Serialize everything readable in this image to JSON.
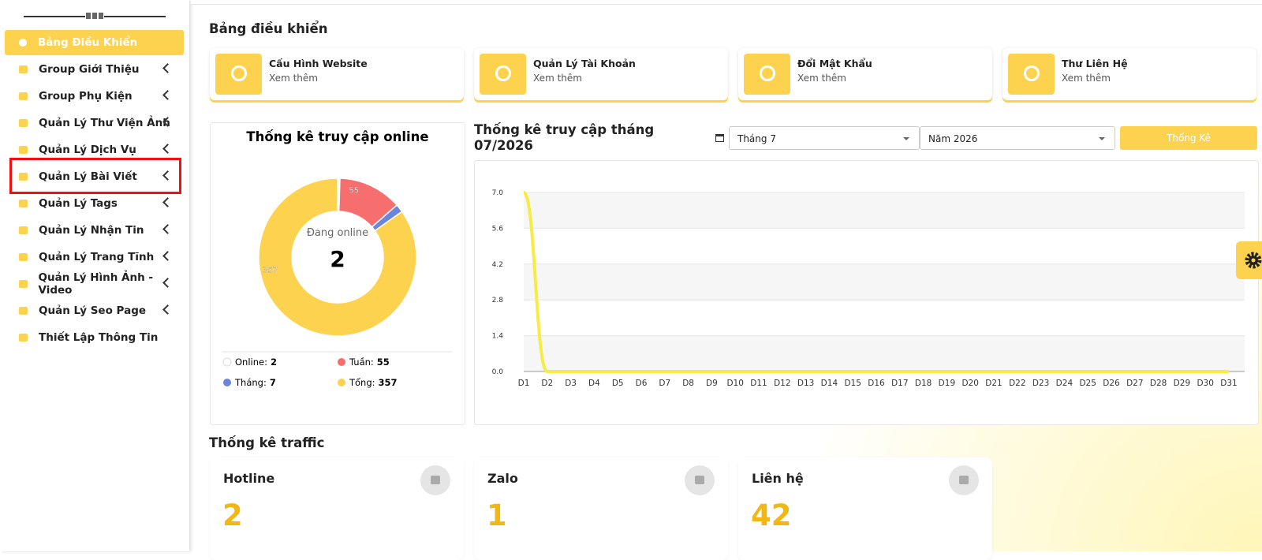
{
  "sidebar": {
    "menu": [
      {
        "label": "Bảng Điều Khiển"
      },
      {
        "label": "Group Giới Thiệu"
      },
      {
        "label": "Group Phụ Kiện"
      },
      {
        "label": "Quản Lý Thư Viện Ảnh"
      },
      {
        "label": "Quản Lý Dịch Vụ"
      },
      {
        "label": "Quản Lý Bài Viết"
      },
      {
        "label": "Quản Lý Tags"
      },
      {
        "label": "Quản Lý Nhận Tin"
      },
      {
        "label": "Quản Lý Trang Tĩnh"
      },
      {
        "label": "Quản Lý Hình Ảnh - Video"
      },
      {
        "label": "Quản Lý Seo Page"
      },
      {
        "label": "Thiết Lập Thông Tin"
      }
    ]
  },
  "page_title": "Bảng điều khiển",
  "quick_links": [
    {
      "title": "Cấu Hình Website",
      "link": "Xem thêm"
    },
    {
      "title": "Quản Lý Tài Khoản",
      "link": "Xem thêm"
    },
    {
      "title": "Đổi Mật Khẩu",
      "link": "Xem thêm"
    },
    {
      "title": "Thư Liên Hệ",
      "link": "Xem thêm"
    }
  ],
  "filters": {
    "month": "Tháng 7",
    "year": "Năm 2026",
    "button": "Thống Kê"
  },
  "chart_data": [
    {
      "type": "pie",
      "title": "Thống kê truy cập online",
      "center_label": "Đang online",
      "center_value": 2,
      "series": [
        {
          "name": "Online:",
          "color": "#ffffff",
          "value": 2
        },
        {
          "name": "Tuần:",
          "color": "#f76e6e",
          "value": 55
        },
        {
          "name": "Tháng:",
          "color": "#6b84dd",
          "value": 7
        },
        {
          "name": "Tổng:",
          "color": "#fdd24e",
          "value": 357
        }
      ]
    },
    {
      "type": "line",
      "title": "Thống kê truy cập tháng 07/2026",
      "categories": [
        "D1",
        "D2",
        "D3",
        "D4",
        "D5",
        "D6",
        "D7",
        "D8",
        "D9",
        "D10",
        "D11",
        "D12",
        "D13",
        "D14",
        "D15",
        "D16",
        "D17",
        "D18",
        "D19",
        "D20",
        "D21",
        "D22",
        "D23",
        "D24",
        "D25",
        "D26",
        "D27",
        "D28",
        "D29",
        "D30",
        "D31"
      ],
      "series": [
        {
          "name": null,
          "color": "#f7ec45",
          "values": [
            7,
            0,
            0,
            0,
            0,
            0,
            0,
            0,
            0,
            0,
            0,
            0,
            0,
            0,
            0,
            0,
            0,
            0,
            0,
            0,
            0,
            0,
            0,
            0,
            0,
            0,
            0,
            0,
            0,
            0,
            0
          ]
        }
      ],
      "ylim": [
        0,
        7
      ],
      "yticks": [
        {
          "value": 0,
          "label": "0.0"
        },
        {
          "value": 1.4,
          "label": "1.4"
        },
        {
          "value": 2.8,
          "label": "2.8"
        },
        {
          "value": 4.2,
          "label": "4.2"
        },
        {
          "value": 5.6,
          "label": "5.6"
        },
        {
          "value": 7,
          "label": "7.0"
        }
      ],
      "grid": true
    }
  ],
  "traffic": {
    "title": "Thống kê traffic",
    "cards": [
      {
        "label": "Hotline",
        "value": 2
      },
      {
        "label": "Zalo",
        "value": 1
      },
      {
        "label": "Liên hệ",
        "value": 42
      }
    ]
  }
}
